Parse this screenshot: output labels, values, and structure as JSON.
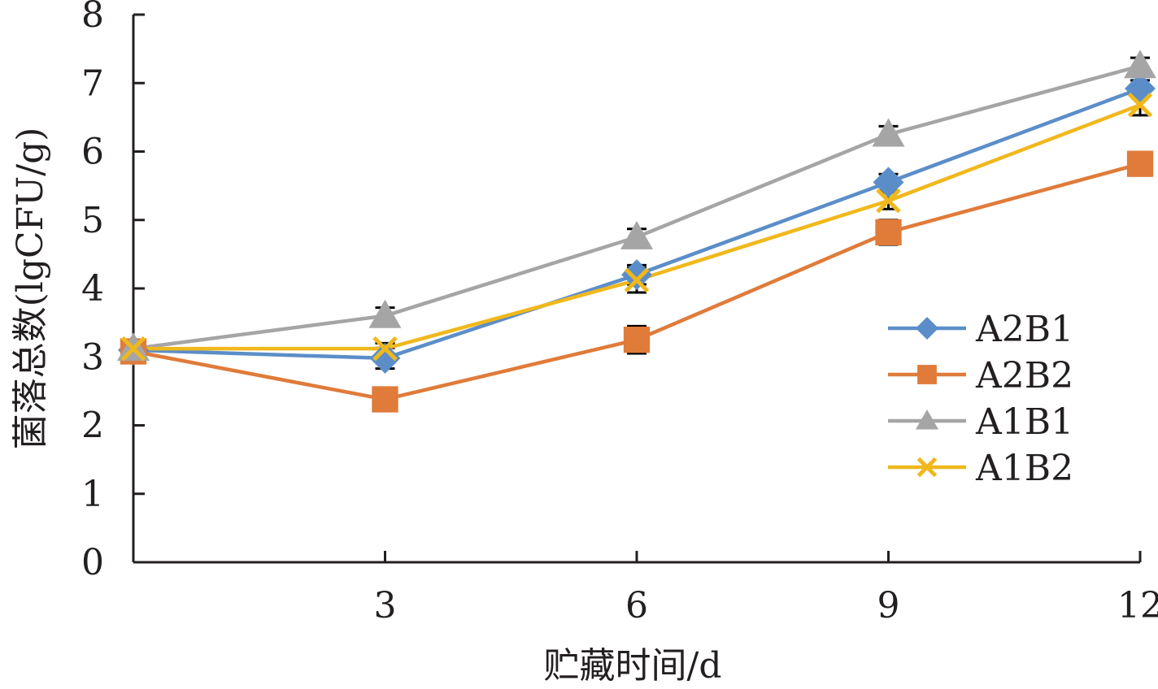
{
  "chart_data": {
    "type": "line",
    "title": "",
    "xlabel": "贮藏时间/d",
    "ylabel": "菌落总数(lgCFU/g)",
    "x": [
      0,
      3,
      6,
      9,
      12
    ],
    "x_tick_labels": [
      "3",
      "6",
      "9",
      "12"
    ],
    "xlim": [
      0,
      12
    ],
    "ylim": [
      0,
      8
    ],
    "y_ticks": [
      0,
      1,
      2,
      3,
      4,
      5,
      6,
      7,
      8
    ],
    "grid": false,
    "legend_position": "right",
    "series": [
      {
        "name": "A2B1",
        "color": "#5b8ec9",
        "marker": "diamond",
        "values": [
          3.1,
          2.98,
          4.2,
          5.55,
          6.92
        ],
        "error": [
          0.12,
          0.15,
          0.14,
          0.12,
          0.12
        ]
      },
      {
        "name": "A2B2",
        "color": "#e07b3a",
        "marker": "square",
        "values": [
          3.08,
          2.38,
          3.25,
          4.82,
          5.82
        ],
        "error": [
          0.12,
          0.1,
          0.2,
          0.18,
          0.15
        ]
      },
      {
        "name": "A1B1",
        "color": "#a5a5a5",
        "marker": "triangle",
        "values": [
          3.12,
          3.6,
          4.75,
          6.25,
          7.25
        ],
        "error": [
          0.12,
          0.12,
          0.12,
          0.12,
          0.12
        ]
      },
      {
        "name": "A1B2",
        "color": "#f0b81c",
        "marker": "x",
        "values": [
          3.12,
          3.12,
          4.12,
          5.28,
          6.68
        ],
        "error": [
          0.1,
          0.08,
          0.18,
          0.12,
          0.15
        ]
      }
    ]
  }
}
